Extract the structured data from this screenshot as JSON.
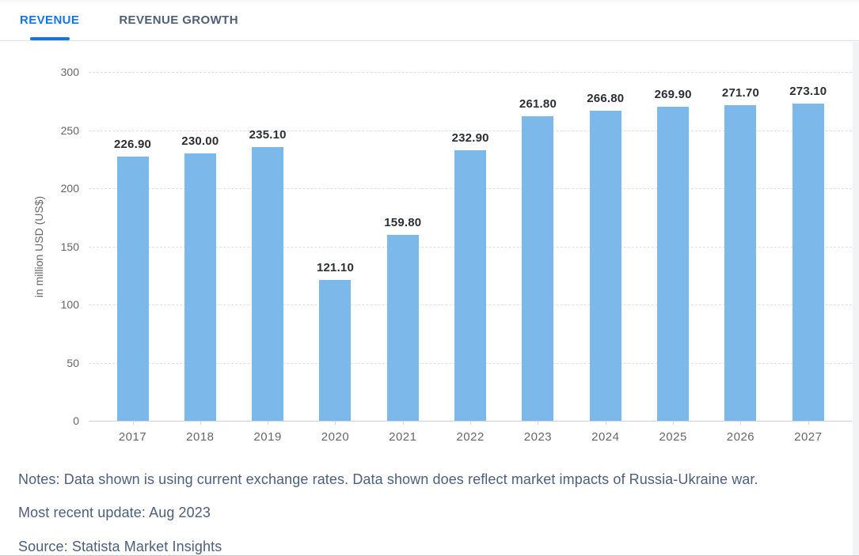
{
  "tabs": [
    {
      "label": "REVENUE",
      "active": true
    },
    {
      "label": "REVENUE GROWTH",
      "active": false
    }
  ],
  "chart_data": {
    "type": "bar",
    "title": "",
    "categories": [
      "2017",
      "2018",
      "2019",
      "2020",
      "2021",
      "2022",
      "2023",
      "2024",
      "2025",
      "2026",
      "2027"
    ],
    "values": [
      226.9,
      230.0,
      235.1,
      121.1,
      159.8,
      232.9,
      261.8,
      266.8,
      269.9,
      271.7,
      273.1
    ],
    "value_labels": [
      "226.90",
      "230.00",
      "235.10",
      "121.10",
      "159.80",
      "232.90",
      "261.80",
      "266.80",
      "269.90",
      "271.70",
      "273.10"
    ],
    "xlabel": "",
    "ylabel": "in million USD (US$)",
    "ylim": [
      0,
      300
    ],
    "yticks": [
      0,
      50,
      100,
      150,
      200,
      250,
      300
    ],
    "grid": "dashed horizontal",
    "legend": "none",
    "bar_color": "#7cb9ea"
  },
  "colors": {
    "accent": "#1673e2",
    "bar": "#7cb9ea",
    "tab_inactive": "#4e5f76",
    "note_text": "#4c5f7d"
  },
  "footer": {
    "notes": "Notes: Data shown is using current exchange rates. Data shown does reflect market impacts of Russia-Ukraine war.",
    "update": "Most recent update: Aug 2023",
    "source": "Source: Statista Market Insights"
  }
}
